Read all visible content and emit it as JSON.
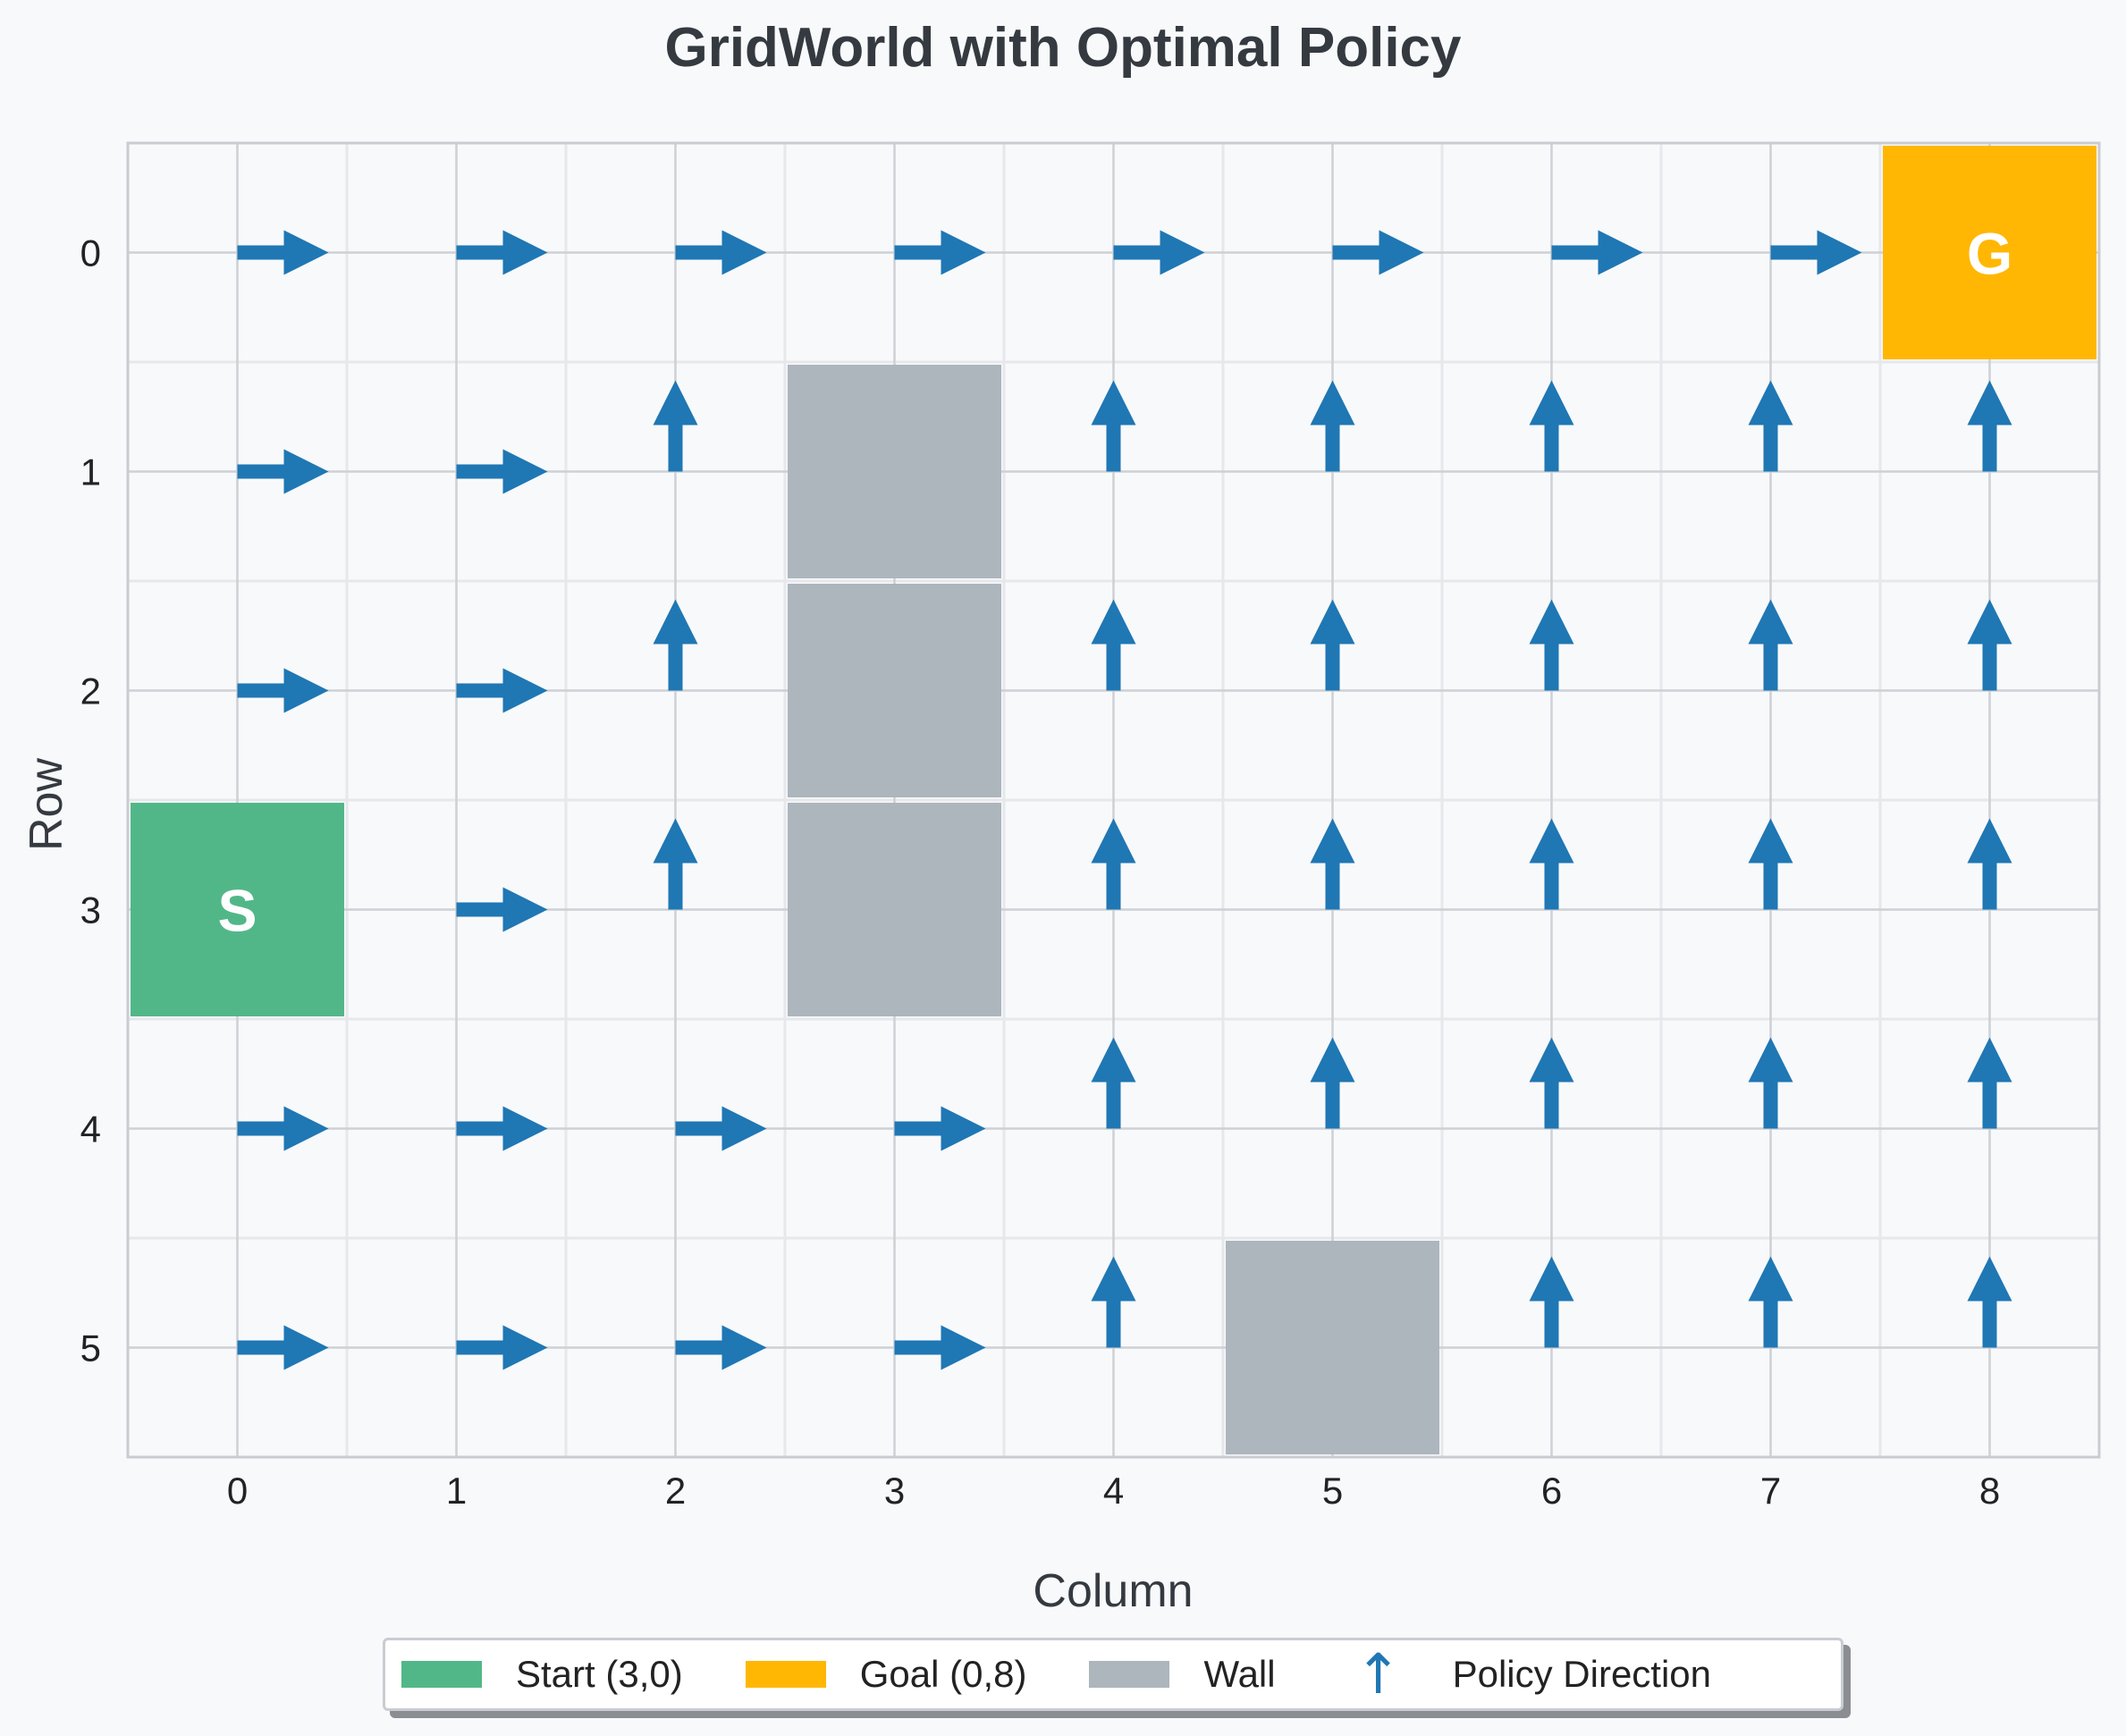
{
  "chart_data": {
    "type": "heatmap",
    "title": "GridWorld with Optimal Policy",
    "xlabel": "Column",
    "ylabel": "Row",
    "rows": 6,
    "cols": 9,
    "xticks": [
      "0",
      "1",
      "2",
      "3",
      "4",
      "5",
      "6",
      "7",
      "8"
    ],
    "yticks": [
      "0",
      "1",
      "2",
      "3",
      "4",
      "5"
    ],
    "start": {
      "row": 3,
      "col": 0,
      "label": "S"
    },
    "goal": {
      "row": 0,
      "col": 8,
      "label": "G"
    },
    "walls": [
      [
        1,
        3
      ],
      [
        2,
        3
      ],
      [
        3,
        3
      ],
      [
        5,
        5
      ]
    ],
    "policy": [
      [
        "right",
        "right",
        "right",
        "right",
        "right",
        "right",
        "right",
        "right",
        ""
      ],
      [
        "right",
        "right",
        "up",
        "",
        "up",
        "up",
        "up",
        "up",
        "up"
      ],
      [
        "right",
        "right",
        "up",
        "",
        "up",
        "up",
        "up",
        "up",
        "up"
      ],
      [
        "",
        "right",
        "up",
        "",
        "up",
        "up",
        "up",
        "up",
        "up"
      ],
      [
        "right",
        "right",
        "right",
        "right",
        "up",
        "up",
        "up",
        "up",
        "up"
      ],
      [
        "right",
        "right",
        "right",
        "right",
        "up",
        "",
        "up",
        "up",
        "up"
      ]
    ],
    "grid": true,
    "legend_position": "bottom-center",
    "legend": [
      {
        "label": "Start (3,0)",
        "kind": "patch",
        "color": "#52b788"
      },
      {
        "label": "Goal (0,8)",
        "kind": "patch",
        "color": "#ffb703"
      },
      {
        "label": "Wall",
        "kind": "patch",
        "color": "#adb5bd"
      },
      {
        "label": "Policy Direction",
        "kind": "arrow",
        "color": "#1f77b4"
      }
    ],
    "colors": {
      "start": "#52b788",
      "goal": "#ffb703",
      "wall": "#adb5bd",
      "arrow": "#1f77b4"
    }
  }
}
